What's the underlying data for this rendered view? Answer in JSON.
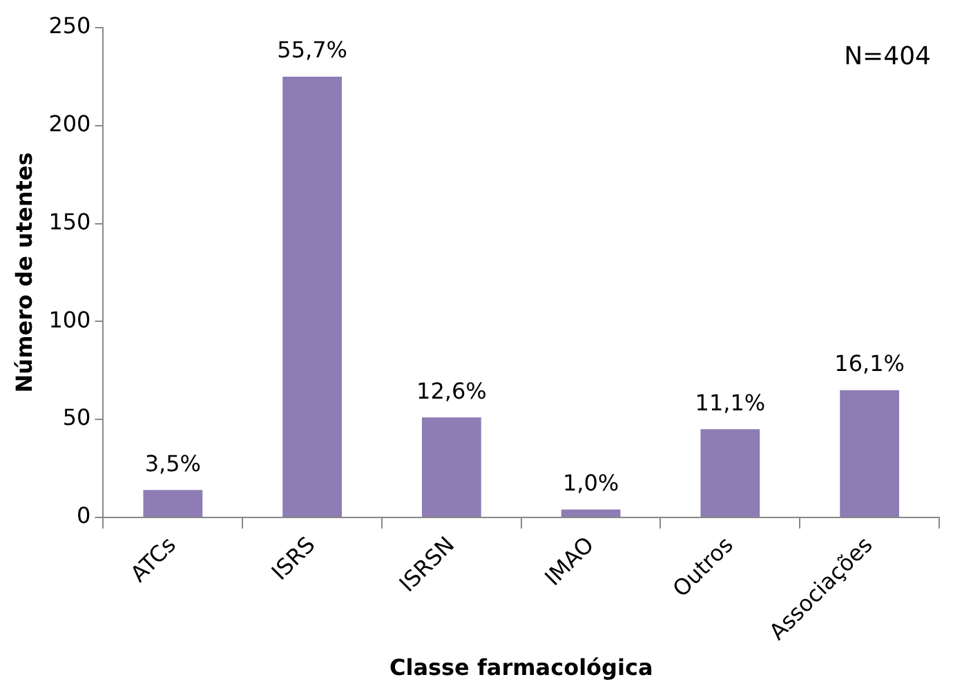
{
  "chart_data": {
    "type": "bar",
    "xlabel": "Classe farmacológica",
    "ylabel": "Número de utentes",
    "categories": [
      "ATCs",
      "ISRS",
      "ISRSN",
      "IMAO",
      "Outros",
      "Associações"
    ],
    "values": [
      14,
      225,
      51,
      4,
      45,
      65
    ],
    "color": "#8e7cb4",
    "ylim": [
      0,
      250
    ],
    "yticks": [
      0,
      50,
      100,
      150,
      200,
      250
    ],
    "grid": false,
    "annotations": [
      "N=404",
      {
        "text": "3,5%",
        "x": "ATCs",
        "y": 14
      },
      {
        "text": "55,7%",
        "x": "ISRS",
        "y": 225
      },
      {
        "text": "12,6%",
        "x": "ISRSN",
        "y": 51
      },
      {
        "text": "1,0%",
        "x": "IMAO",
        "y": 4
      },
      {
        "text": "11,1%",
        "x": "Outros",
        "y": 45
      },
      {
        "text": "16,1%",
        "x": "Associações",
        "y": 65
      }
    ]
  }
}
